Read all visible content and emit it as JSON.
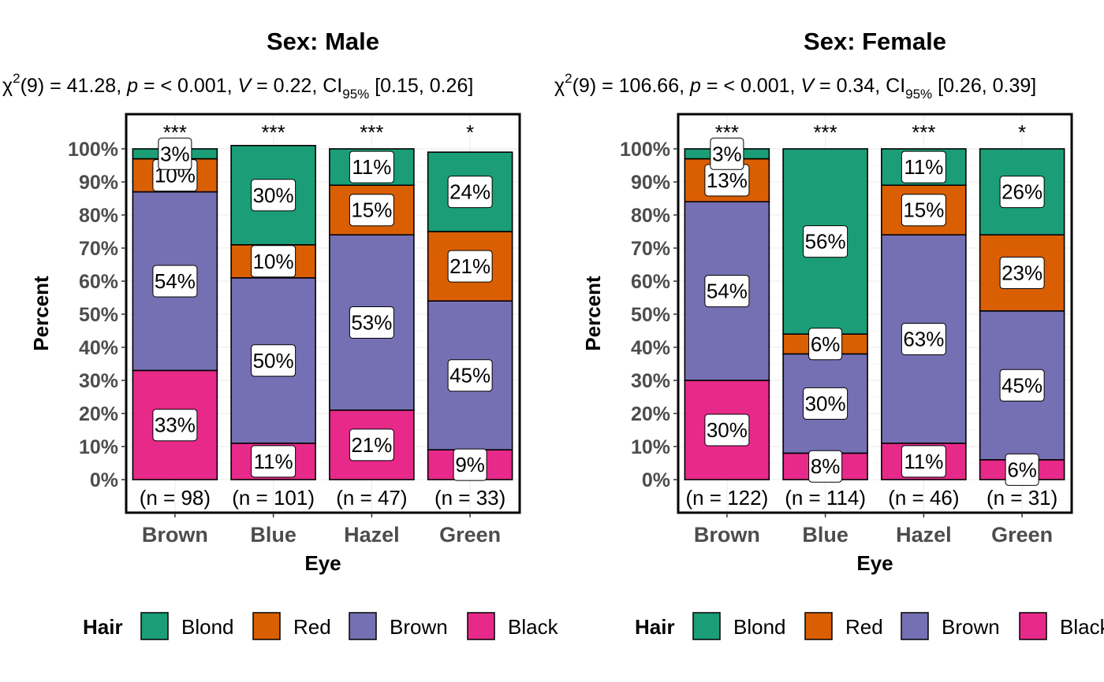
{
  "chart_data": [
    {
      "type": "bar",
      "stacked": true,
      "title": "Sex: Male",
      "subtitle": {
        "stat_parts": [
          "χ",
          "2",
          "(9) = 41.28, ",
          "p",
          " = < 0.001, ",
          "V",
          " = 0.22, CI",
          "95%",
          " [0.15, 0.26]"
        ]
      },
      "xlabel": "Eye",
      "ylabel": "Percent",
      "ylim": [
        0,
        100
      ],
      "y_ticks": [
        "0%",
        "10%",
        "20%",
        "30%",
        "40%",
        "50%",
        "60%",
        "70%",
        "80%",
        "90%",
        "100%"
      ],
      "grid": true,
      "legend_title": "Hair",
      "legend_position": "bottom",
      "categories": [
        "Brown",
        "Blue",
        "Hazel",
        "Green"
      ],
      "counts": [
        "(n = 98)",
        "(n = 101)",
        "(n = 47)",
        "(n = 33)"
      ],
      "significance": [
        "***",
        "***",
        "***",
        "*"
      ],
      "series": [
        {
          "name": "Black",
          "color": "#E7298A",
          "values": [
            33,
            11,
            21,
            9
          ],
          "labels": [
            "33%",
            "11%",
            "21%",
            "9%"
          ]
        },
        {
          "name": "Brown",
          "color": "#7570B3",
          "values": [
            54,
            50,
            53,
            45
          ],
          "labels": [
            "54%",
            "50%",
            "53%",
            "45%"
          ]
        },
        {
          "name": "Red",
          "color": "#D95F02",
          "values": [
            10,
            10,
            15,
            21
          ],
          "labels": [
            "10%",
            "10%",
            "15%",
            "21%"
          ]
        },
        {
          "name": "Blond",
          "color": "#1B9E77",
          "values": [
            3,
            30,
            11,
            24
          ],
          "labels": [
            "3%",
            "30%",
            "11%",
            "24%"
          ]
        }
      ]
    },
    {
      "type": "bar",
      "stacked": true,
      "title": "Sex: Female",
      "subtitle": {
        "stat_parts": [
          "χ",
          "2",
          "(9) = 106.66, ",
          "p",
          " = < 0.001, ",
          "V",
          " = 0.34, CI",
          "95%",
          " [0.26, 0.39]"
        ]
      },
      "xlabel": "Eye",
      "ylabel": "Percent",
      "ylim": [
        0,
        100
      ],
      "y_ticks": [
        "0%",
        "10%",
        "20%",
        "30%",
        "40%",
        "50%",
        "60%",
        "70%",
        "80%",
        "90%",
        "100%"
      ],
      "grid": true,
      "legend_title": "Hair",
      "legend_position": "bottom",
      "categories": [
        "Brown",
        "Blue",
        "Hazel",
        "Green"
      ],
      "counts": [
        "(n = 122)",
        "(n = 114)",
        "(n = 46)",
        "(n = 31)"
      ],
      "significance": [
        "***",
        "***",
        "***",
        "*"
      ],
      "series": [
        {
          "name": "Black",
          "color": "#E7298A",
          "values": [
            30,
            8,
            11,
            6
          ],
          "labels": [
            "30%",
            "8%",
            "11%",
            "6%"
          ]
        },
        {
          "name": "Brown",
          "color": "#7570B3",
          "values": [
            54,
            30,
            63,
            45
          ],
          "labels": [
            "54%",
            "30%",
            "63%",
            "45%"
          ]
        },
        {
          "name": "Red",
          "color": "#D95F02",
          "values": [
            13,
            6,
            15,
            23
          ],
          "labels": [
            "13%",
            "6%",
            "15%",
            "23%"
          ]
        },
        {
          "name": "Blond",
          "color": "#1B9E77",
          "values": [
            3,
            56,
            11,
            26
          ],
          "labels": [
            "3%",
            "56%",
            "11%",
            "26%"
          ]
        }
      ]
    }
  ]
}
